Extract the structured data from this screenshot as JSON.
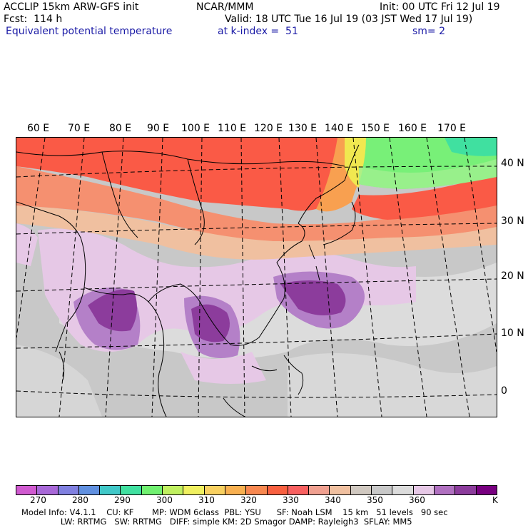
{
  "header": {
    "line1_left": "ACCLIP 15km ARW-GFS init",
    "line1_center": "NCAR/MMM",
    "line1_right": "Init: 00 UTC Fri 12 Jul 19",
    "line2_left": "Fcst:  114 h",
    "line2_right": "Valid: 18 UTC Tue 16 Jul 19 (03 JST Wed 17 Jul 19)",
    "line3_left": "Equivalent potential temperature",
    "line3_center": "at k-index =  51",
    "line3_right": "sm= 2"
  },
  "map": {
    "lon_labels": [
      "60 E",
      "70 E",
      "80 E",
      "90 E",
      "100 E",
      "110 E",
      "120 E",
      "130 E",
      "140 E",
      "150 E",
      "160 E",
      "170 E"
    ],
    "lat_labels": [
      "40 N",
      "30 N",
      "20 N",
      "10 N",
      "0"
    ],
    "colors": {
      "cold_lavender": "#e6c8e6",
      "purple_mid": "#b480c8",
      "purple_deep": "#8c3c9c",
      "gray_light": "#dcdcdc",
      "gray_mid": "#c8c8c8",
      "peach": "#f0c0a0",
      "salmon": "#f59070",
      "red_orange": "#fa5a46",
      "orange": "#f8a050",
      "yellow": "#f0e850",
      "green": "#78f078",
      "teal": "#40e0a0"
    }
  },
  "colorbar": {
    "colors": [
      "#d05ad0",
      "#a868d8",
      "#8080e0",
      "#6090e0",
      "#40c8c8",
      "#40e0a0",
      "#70f070",
      "#c0f060",
      "#f0f060",
      "#f8d060",
      "#f8b050",
      "#f88850",
      "#f86040",
      "#f86060",
      "#f0a090",
      "#f0c0a0",
      "#d0c8c0",
      "#c8c8c8",
      "#dcdcdc",
      "#e6c8e6",
      "#b070c0",
      "#8c3c9c",
      "#780080"
    ],
    "tick_labels": [
      "270",
      "280",
      "290",
      "300",
      "310",
      "320",
      "330",
      "340",
      "350",
      "360"
    ],
    "unit": "K"
  },
  "footer": {
    "line1": "Model Info: V4.1.1    CU: KF       MP: WDM 6class  PBL: YSU      SF: Noah LSM    15 km   51 levels   90 sec",
    "line2": "               LW: RRTMG   SW: RRTMG   DIFF: simple KM: 2D Smagor DAMP: Rayleigh3  SFLAY: MM5"
  }
}
